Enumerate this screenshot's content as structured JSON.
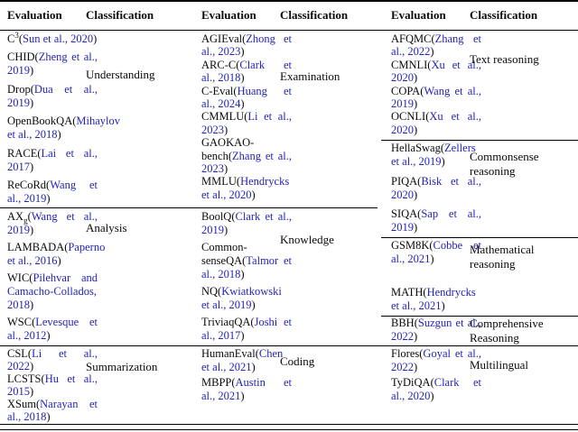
{
  "link_color": "#2323b8",
  "text_color": "#0a0a0a",
  "groups": [
    {
      "header": {
        "evaluation": "Evaluation",
        "classification": "Classification"
      },
      "sections": [
        {
          "classification": "Understanding",
          "items": [
            [
              [
                "t",
                "C"
              ],
              [
                "sup",
                "3"
              ],
              [
                "t",
                "("
              ],
              [
                "c",
                "Sun et al., 2020"
              ],
              [
                "t",
                ")"
              ]
            ],
            [
              [
                "t",
                "CHID("
              ],
              [
                "c",
                "Zheng et al., 2019"
              ],
              [
                "t",
                ")"
              ]
            ],
            [
              [
                "t",
                "Drop("
              ],
              [
                "c",
                "Dua et al., 2019"
              ],
              [
                "t",
                ")"
              ]
            ],
            [
              [
                "t",
                "OpenBookQA("
              ],
              [
                "c",
                "Mihaylov et al., 2018"
              ],
              [
                "t",
                ")"
              ]
            ],
            [
              [
                "t",
                "RACE("
              ],
              [
                "c",
                "Lai et al., 2017"
              ],
              [
                "t",
                ")"
              ]
            ],
            [
              [
                "t",
                "ReCoRd("
              ],
              [
                "c",
                "Wang et al., 2019"
              ],
              [
                "t",
                ")"
              ]
            ]
          ]
        },
        {
          "classification": "Analysis",
          "items": [
            [
              [
                "t",
                "AX"
              ],
              [
                "sub",
                "g"
              ],
              [
                "t",
                "("
              ],
              [
                "c",
                "Wang et al., 2019"
              ],
              [
                "t",
                ")"
              ]
            ],
            [
              [
                "t",
                "LAMBADA("
              ],
              [
                "c",
                "Paperno et al., 2016"
              ],
              [
                "t",
                ")"
              ]
            ],
            [
              [
                "t",
                "WIC("
              ],
              [
                "c",
                "Pilehvar and Camacho-Collados, 2018"
              ],
              [
                "t",
                ")"
              ]
            ],
            [
              [
                "t",
                "WSC("
              ],
              [
                "c",
                "Levesque et al., 2012"
              ],
              [
                "t",
                ")"
              ]
            ]
          ]
        },
        {
          "classification": "Summarization",
          "items": [
            [
              [
                "t",
                "CSL("
              ],
              [
                "c",
                "Li et al., 2022"
              ],
              [
                "t",
                ")"
              ]
            ],
            [
              [
                "t",
                "LCSTS("
              ],
              [
                "c",
                "Hu et al., 2015"
              ],
              [
                "t",
                ")"
              ]
            ],
            [
              [
                "t",
                "XSum("
              ],
              [
                "c",
                "Narayan et al., 2018"
              ],
              [
                "t",
                ")"
              ]
            ]
          ]
        }
      ]
    },
    {
      "header": {
        "evaluation": "Evaluation",
        "classification": "Classification"
      },
      "sections": [
        {
          "classification": "Examination",
          "items": [
            [
              [
                "t",
                "AGIEval("
              ],
              [
                "c",
                "Zhong et al., 2023"
              ],
              [
                "t",
                ")"
              ]
            ],
            [
              [
                "t",
                "ARC-C("
              ],
              [
                "c",
                "Clark et al., 2018"
              ],
              [
                "t",
                ")"
              ]
            ],
            [
              [
                "t",
                "C-Eval("
              ],
              [
                "c",
                "Huang et al., 2024"
              ],
              [
                "t",
                ")"
              ]
            ],
            [
              [
                "t",
                "CMMLU("
              ],
              [
                "c",
                "Li et al., 2023"
              ],
              [
                "t",
                ")"
              ]
            ],
            [
              [
                "t",
                "GAOKAO-bench("
              ],
              [
                "c",
                "Zhang et al., 2023"
              ],
              [
                "t",
                ")"
              ]
            ],
            [
              [
                "t",
                "MMLU("
              ],
              [
                "c",
                "Hendrycks et al., 2020"
              ],
              [
                "t",
                ")"
              ]
            ]
          ]
        },
        {
          "classification": "Knowledge",
          "items": [
            [
              [
                "t",
                "BoolQ("
              ],
              [
                "c",
                "Clark et al., 2019"
              ],
              [
                "t",
                ")"
              ]
            ],
            [
              [
                "t",
                "Common-senseQA("
              ],
              [
                "c",
                "Talmor et al., 2018"
              ],
              [
                "t",
                ")"
              ]
            ],
            [
              [
                "t",
                "NQ("
              ],
              [
                "c",
                "Kwiatkowski et al., 2019"
              ],
              [
                "t",
                ")"
              ]
            ],
            [
              [
                "t",
                "TriviaqQA("
              ],
              [
                "c",
                "Joshi et al., 2017"
              ],
              [
                "t",
                ")"
              ]
            ]
          ]
        },
        {
          "classification": "Coding",
          "items": [
            [
              [
                "t",
                "HumanEval("
              ],
              [
                "c",
                "Chen et al., 2021"
              ],
              [
                "t",
                ")"
              ]
            ],
            [
              [
                "t",
                "MBPP("
              ],
              [
                "c",
                "Austin et al., 2021"
              ],
              [
                "t",
                ")"
              ]
            ]
          ]
        }
      ]
    },
    {
      "header": {
        "evaluation": "Evaluation",
        "classification": "Classification"
      },
      "sections": [
        {
          "classification": "Text reasoning",
          "items": [
            [
              [
                "t",
                "AFQMC("
              ],
              [
                "c",
                "Zhang et al., 2022"
              ],
              [
                "t",
                ")"
              ]
            ],
            [
              [
                "t",
                "CMNLI("
              ],
              [
                "c",
                "Xu et al., 2020"
              ],
              [
                "t",
                ")"
              ]
            ],
            [
              [
                "t",
                "COPA("
              ],
              [
                "c",
                "Wang et al., 2019"
              ],
              [
                "t",
                ")"
              ]
            ],
            [
              [
                "t",
                "OCNLI("
              ],
              [
                "c",
                "Xu et al., 2020"
              ],
              [
                "t",
                ")"
              ]
            ]
          ]
        },
        {
          "classification": "Commonsense reasoning",
          "items": [
            [
              [
                "t",
                "HellaSwag("
              ],
              [
                "c",
                "Zellers et al., 2019"
              ],
              [
                "t",
                ")"
              ]
            ],
            [
              [
                "t",
                "PIQA("
              ],
              [
                "c",
                "Bisk et al., 2020"
              ],
              [
                "t",
                ")"
              ]
            ],
            [
              [
                "t",
                "SIQA("
              ],
              [
                "c",
                "Sap et al., 2019"
              ],
              [
                "t",
                ")"
              ]
            ]
          ]
        },
        {
          "classification": "Mathematical reasoning",
          "items": [
            [
              [
                "t",
                "GSM8K("
              ],
              [
                "c",
                "Cobbe et al., 2021"
              ],
              [
                "t",
                ")"
              ]
            ],
            [
              [
                "t",
                "MATH("
              ],
              [
                "c",
                "Hendrycks et al., 2021"
              ],
              [
                "t",
                ")"
              ]
            ]
          ]
        },
        {
          "classification": "Comprehensive Reasoning",
          "items": [
            [
              [
                "t",
                "BBH("
              ],
              [
                "c",
                "Suzgun et al., 2022"
              ],
              [
                "t",
                ")"
              ]
            ]
          ]
        },
        {
          "classification": "Multilingual",
          "items": [
            [
              [
                "t",
                "Flores("
              ],
              [
                "c",
                "Goyal et al., 2022"
              ],
              [
                "t",
                ")"
              ]
            ],
            [
              [
                "t",
                "TyDiQA("
              ],
              [
                "c",
                "Clark et al., 2020"
              ],
              [
                "t",
                ")"
              ]
            ]
          ]
        }
      ]
    }
  ]
}
